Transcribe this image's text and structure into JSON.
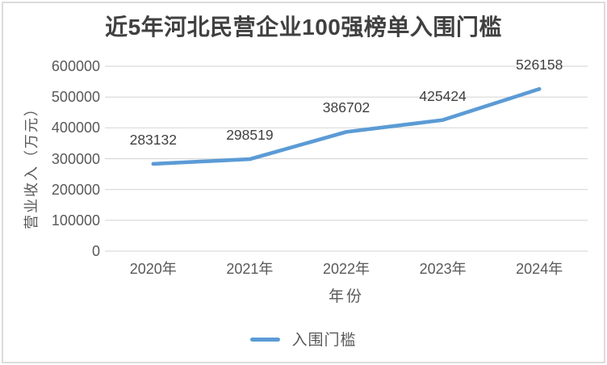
{
  "chart": {
    "title": "近5年河北民营企业100强榜单入围门槛",
    "y_axis_title": "营业收入（万元）",
    "x_axis_title": "年份",
    "legend": {
      "label": "入围门槛"
    },
    "colors": {
      "line": "#5B9BD5",
      "gridline": "#D9D9D9",
      "title_text": "#404040",
      "tick_text": "#595959",
      "data_label_text": "#404040"
    }
  },
  "chart_data": {
    "type": "line",
    "title": "近5年河北民营企业100强榜单入围门槛",
    "categories": [
      "2020年",
      "2021年",
      "2022年",
      "2023年",
      "2024年"
    ],
    "series": [
      {
        "name": "入围门槛",
        "values": [
          283132,
          298519,
          386702,
          425424,
          526158
        ]
      }
    ],
    "xlabel": "年份",
    "ylabel": "营业收入（万元）",
    "ylim": [
      0,
      600000
    ],
    "yticks": [
      0,
      100000,
      200000,
      300000,
      400000,
      500000,
      600000
    ],
    "grid": true,
    "legend_position": "bottom",
    "data_labels": true,
    "markers": false
  }
}
